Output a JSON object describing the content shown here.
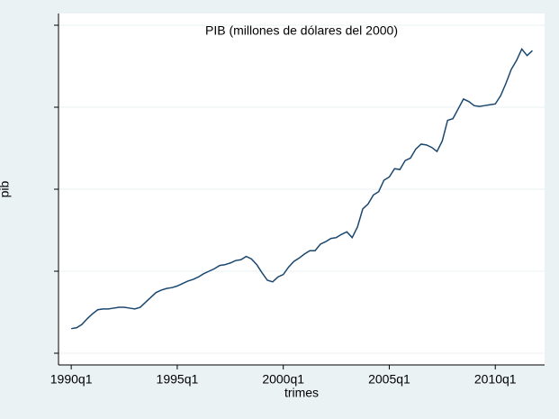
{
  "chart_data": {
    "type": "line",
    "title": "PIB (millones de dólares del 2000)",
    "x_label": "trimes",
    "y_label": "pib",
    "x": [
      120,
      121,
      122,
      123,
      124,
      125,
      126,
      127,
      128,
      129,
      130,
      131,
      132,
      133,
      134,
      135,
      136,
      137,
      138,
      139,
      140,
      141,
      142,
      143,
      144,
      145,
      146,
      147,
      148,
      149,
      150,
      151,
      152,
      153,
      154,
      155,
      156,
      157,
      158,
      159,
      160,
      161,
      162,
      163,
      164,
      165,
      166,
      167,
      168,
      169,
      170,
      171,
      172,
      173,
      174,
      175,
      176,
      177,
      178,
      179,
      180,
      181,
      182,
      183,
      184,
      185,
      186,
      187,
      188,
      189,
      190,
      191,
      192,
      193,
      194,
      195,
      196,
      197,
      198,
      199,
      200,
      201,
      202,
      203,
      204,
      205,
      206,
      207
    ],
    "series": [
      {
        "name": "pib",
        "color": "#1a476f",
        "values": [
          130,
          131,
          135,
          142,
          148,
          153,
          154,
          154,
          155,
          156,
          156,
          155,
          154,
          156,
          162,
          168,
          174,
          177,
          179,
          180,
          182,
          185,
          188,
          190,
          193,
          197,
          200,
          203,
          207,
          208,
          210,
          213,
          214,
          218,
          215,
          208,
          198,
          189,
          187,
          193,
          196,
          205,
          212,
          216,
          221,
          225,
          225,
          233,
          236,
          240,
          241,
          245,
          248,
          241,
          254,
          276,
          282,
          293,
          297,
          311,
          315,
          325,
          324,
          335,
          338,
          349,
          355,
          354,
          351,
          346,
          359,
          384,
          386,
          398,
          410,
          407,
          402,
          401,
          402,
          403,
          404,
          414,
          429,
          446,
          457,
          471,
          463,
          469
        ]
      }
    ],
    "xlim": [
      117.6,
      209.3
    ],
    "xticks": [
      {
        "value": 120,
        "label": "1990q1"
      },
      {
        "value": 140,
        "label": "1995q1"
      },
      {
        "value": 160,
        "label": "2000q1"
      },
      {
        "value": 180,
        "label": "2005q1"
      },
      {
        "value": 200,
        "label": "2010q1"
      }
    ],
    "ylim": [
      85.7,
      514.3
    ],
    "yticks": [
      100,
      200,
      300,
      400,
      500
    ],
    "grid": true
  }
}
